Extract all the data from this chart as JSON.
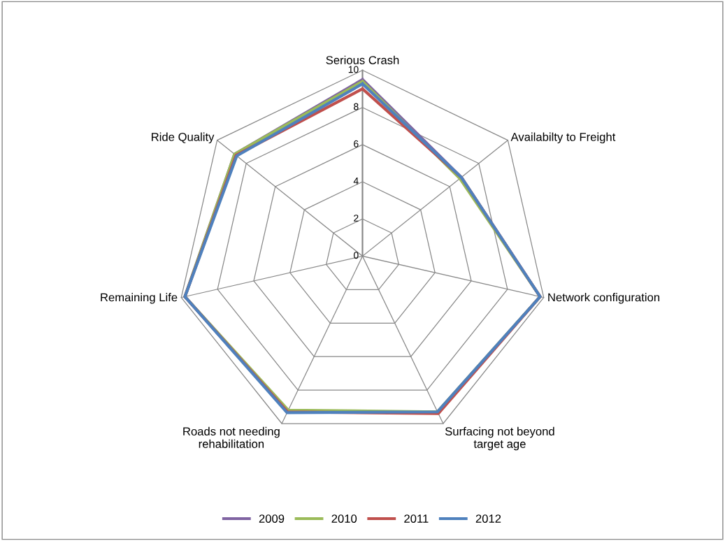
{
  "chart_data": {
    "type": "radar",
    "categories": [
      "Serious Crash",
      "Availabilty to Freight",
      "Network configuration",
      "Surfacing not beyond\ntarget age",
      "Roads not needing\nrehabilitation",
      "Remaining Life",
      "Ride Quality"
    ],
    "series": [
      {
        "name": "2009",
        "color": "#8064a2",
        "values": [
          9.5,
          6.8,
          9.8,
          9.3,
          9.3,
          9.8,
          8.8
        ]
      },
      {
        "name": "2010",
        "color": "#9bbb59",
        "values": [
          9.4,
          6.7,
          9.8,
          9.3,
          9.2,
          9.8,
          8.8
        ]
      },
      {
        "name": "2011",
        "color": "#c0504d",
        "values": [
          9.0,
          6.8,
          9.8,
          9.4,
          9.3,
          9.8,
          8.7
        ]
      },
      {
        "name": "2012",
        "color": "#4f81bd",
        "values": [
          9.27,
          6.8,
          9.8,
          9.3,
          9.35,
          9.8,
          8.65
        ]
      }
    ],
    "ylim": [
      0,
      10
    ],
    "yticks": [
      0,
      2,
      4,
      6,
      8,
      10
    ],
    "grid": true,
    "legend": "bottom"
  }
}
